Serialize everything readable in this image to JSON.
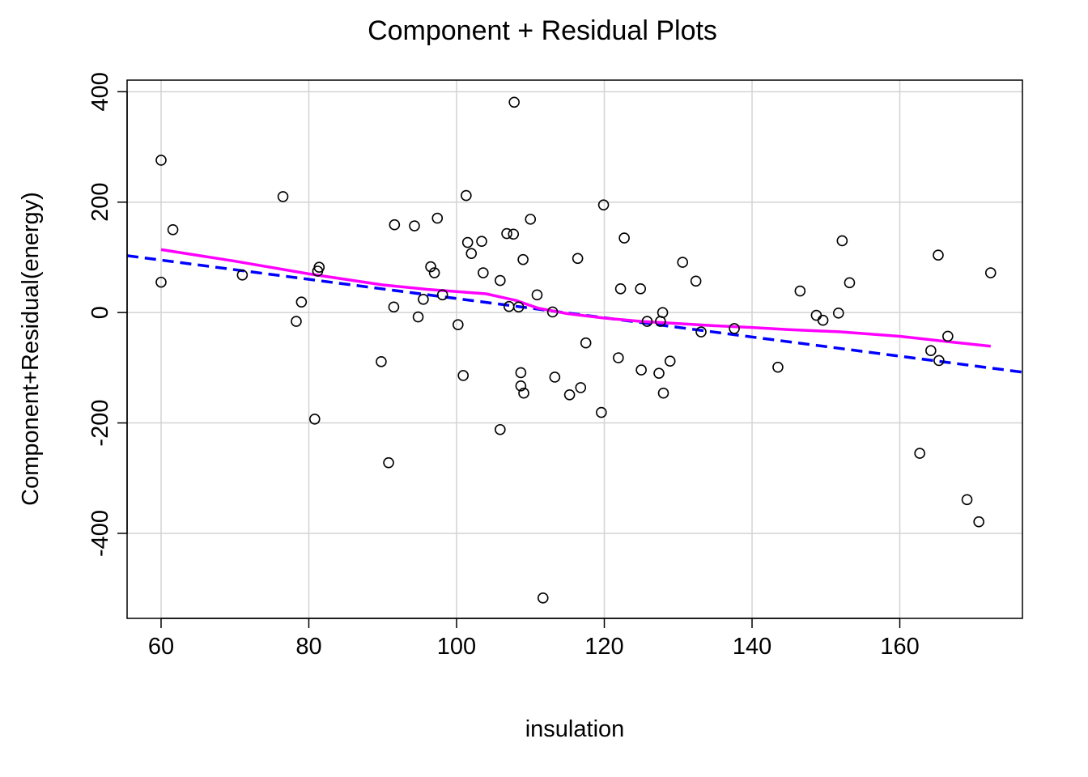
{
  "chart_data": {
    "type": "scatter",
    "title": "Component + Residual Plots",
    "xlabel": "insulation",
    "ylabel": "Component+Residual(energy)",
    "xlim": [
      55.4,
      176.6
    ],
    "ylim": [
      -554,
      421
    ],
    "x_ticks": [
      60,
      80,
      100,
      120,
      140,
      160
    ],
    "y_ticks": [
      400,
      200,
      0,
      -200,
      -400
    ],
    "x_tick_labels": [
      "60",
      "80",
      "100",
      "120",
      "140",
      "160"
    ],
    "y_tick_labels": [
      "400",
      "200",
      "0",
      "-200",
      "-400"
    ],
    "grid": true,
    "colors": {
      "points": "#000000",
      "fit_line": "#0000ff",
      "smooth_line": "#ff00ff",
      "grid": "#d3d3d3",
      "frame": "#000000"
    },
    "points": [
      [
        60.0,
        276
      ],
      [
        60.0,
        55
      ],
      [
        61.6,
        150
      ],
      [
        71.0,
        68
      ],
      [
        76.5,
        210
      ],
      [
        78.3,
        -16
      ],
      [
        79.0,
        19
      ],
      [
        80.8,
        -193
      ],
      [
        81.2,
        75
      ],
      [
        81.4,
        82
      ],
      [
        89.8,
        -89
      ],
      [
        90.8,
        -272
      ],
      [
        91.5,
        10
      ],
      [
        91.6,
        159
      ],
      [
        94.3,
        157
      ],
      [
        94.8,
        -8
      ],
      [
        95.5,
        24
      ],
      [
        96.5,
        83
      ],
      [
        97.0,
        72
      ],
      [
        97.4,
        171
      ],
      [
        98.1,
        32
      ],
      [
        100.2,
        -22
      ],
      [
        100.9,
        -114
      ],
      [
        101.3,
        212
      ],
      [
        101.5,
        127
      ],
      [
        102.0,
        107
      ],
      [
        103.4,
        129
      ],
      [
        103.6,
        72
      ],
      [
        105.9,
        58
      ],
      [
        105.9,
        -212
      ],
      [
        106.8,
        143
      ],
      [
        107.1,
        11
      ],
      [
        107.7,
        142
      ],
      [
        107.8,
        381
      ],
      [
        108.4,
        10
      ],
      [
        108.7,
        -109
      ],
      [
        108.7,
        -133
      ],
      [
        109.0,
        96
      ],
      [
        109.1,
        -146
      ],
      [
        110.0,
        169
      ],
      [
        110.9,
        32
      ],
      [
        111.7,
        -517
      ],
      [
        113.0,
        1
      ],
      [
        113.3,
        -117
      ],
      [
        115.3,
        -149
      ],
      [
        116.4,
        98
      ],
      [
        116.8,
        -136
      ],
      [
        117.5,
        -55
      ],
      [
        119.6,
        -181
      ],
      [
        119.9,
        195
      ],
      [
        121.9,
        -82
      ],
      [
        122.2,
        43
      ],
      [
        122.7,
        135
      ],
      [
        124.9,
        43
      ],
      [
        125.0,
        -104
      ],
      [
        125.8,
        -16
      ],
      [
        127.4,
        -110
      ],
      [
        127.6,
        -16
      ],
      [
        127.9,
        0
      ],
      [
        128.0,
        -146
      ],
      [
        128.9,
        -88
      ],
      [
        130.6,
        91
      ],
      [
        132.4,
        57
      ],
      [
        133.1,
        -35
      ],
      [
        137.6,
        -29
      ],
      [
        143.5,
        -99
      ],
      [
        146.5,
        39
      ],
      [
        148.7,
        -5
      ],
      [
        149.6,
        -14
      ],
      [
        151.7,
        -1
      ],
      [
        152.2,
        130
      ],
      [
        153.2,
        54
      ],
      [
        162.7,
        -255
      ],
      [
        164.2,
        -69
      ],
      [
        165.2,
        104
      ],
      [
        165.3,
        -87
      ],
      [
        166.5,
        -43
      ],
      [
        169.1,
        -339
      ],
      [
        170.7,
        -379
      ],
      [
        172.3,
        72
      ]
    ],
    "fit_line": {
      "name": "",
      "style": "dashed",
      "x": [
        55.4,
        176.6
      ],
      "y": [
        103.0,
        -108.0
      ]
    },
    "smooth_line": {
      "name": "",
      "x": [
        60.0,
        70,
        80,
        90,
        96,
        100,
        104,
        108,
        111,
        115,
        120,
        125,
        130,
        135,
        140,
        145,
        152,
        160,
        166,
        172.3
      ],
      "y": [
        114,
        93,
        70,
        50,
        42,
        38,
        34,
        22,
        8,
        -2,
        -10,
        -16,
        -20,
        -24,
        -27,
        -31,
        -35,
        -43,
        -52,
        -61
      ]
    }
  }
}
